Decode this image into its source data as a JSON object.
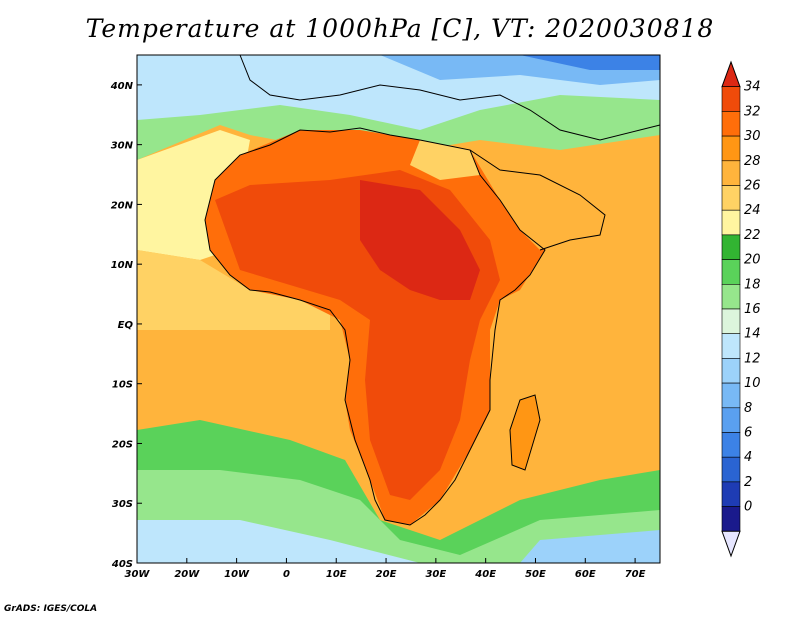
{
  "title": "Temperature at 1000hPa [C], VT: 2020030818",
  "credit": "GrADS: IGES/COLA",
  "map": {
    "lon_ticks": [
      "30W",
      "20W",
      "10W",
      "0",
      "10E",
      "20E",
      "30E",
      "40E",
      "50E",
      "60E",
      "70E"
    ],
    "lat_ticks": [
      "40N",
      "30N",
      "20N",
      "10N",
      "EQ",
      "10S",
      "20S",
      "30S",
      "40S"
    ],
    "extent": {
      "lon": [
        -30,
        75
      ],
      "lat": [
        -40,
        45
      ]
    }
  },
  "colorbar": {
    "unit": "C",
    "levels": [
      "0",
      "2",
      "4",
      "6",
      "8",
      "10",
      "12",
      "14",
      "16",
      "18",
      "20",
      "22",
      "24",
      "26",
      "28",
      "30",
      "32",
      "34"
    ],
    "colors": [
      "#1a1a8c",
      "#1e3cb4",
      "#2a64d2",
      "#3c82e6",
      "#5aa0f0",
      "#78b9f5",
      "#9cd2fa",
      "#bee6fc",
      "#dcf5dc",
      "#96e68c",
      "#5ad25a",
      "#32b432",
      "#fff5a0",
      "#ffd264",
      "#ffb43c",
      "#ff9614",
      "#ff6e0a",
      "#f04b0a",
      "#dc2814"
    ]
  }
}
